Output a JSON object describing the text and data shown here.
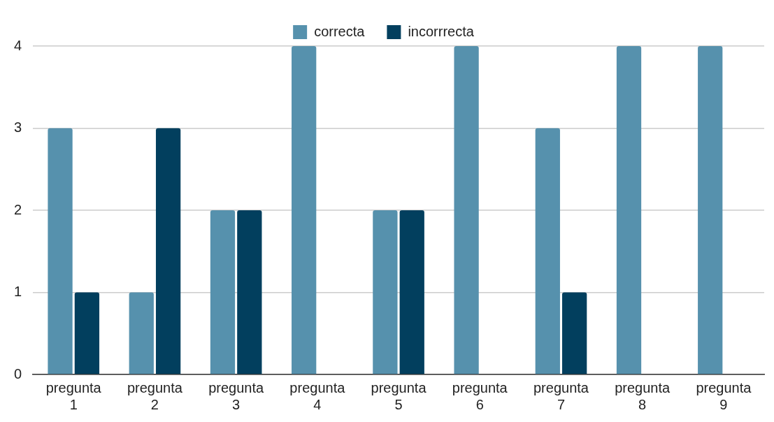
{
  "chart_data": {
    "type": "bar",
    "categories": [
      "pregunta 1",
      "pregunta 2",
      "pregunta 3",
      "pregunta 4",
      "pregunta 5",
      "pregunta 6",
      "pregunta 7",
      "pregunta 8",
      "pregunta 9"
    ],
    "series": [
      {
        "name": "correcta",
        "color": "#5691ad",
        "values": [
          3,
          1,
          2,
          4,
          2,
          4,
          3,
          4,
          4
        ]
      },
      {
        "name": "incorrrecta",
        "color": "#023f5e",
        "values": [
          1,
          3,
          2,
          0,
          2,
          0,
          1,
          0,
          0
        ]
      }
    ],
    "ylim": [
      0,
      4
    ],
    "yticks": [
      0,
      1,
      2,
      3,
      4
    ],
    "grid": "y",
    "legend": "top"
  }
}
